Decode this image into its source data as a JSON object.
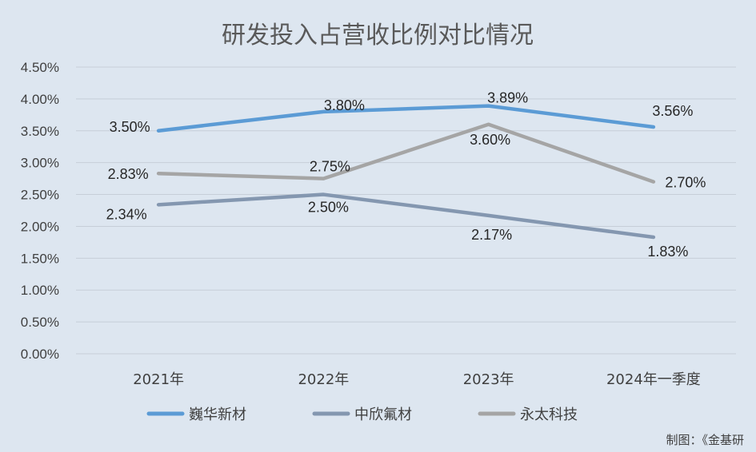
{
  "chart_data": {
    "type": "line",
    "title": "研发投入占营收比例对比情况",
    "categories": [
      "2021年",
      "2022年",
      "2023年",
      "2024年一季度"
    ],
    "y_ticks": [
      "0.00%",
      "0.50%",
      "1.00%",
      "1.50%",
      "2.00%",
      "2.50%",
      "3.00%",
      "3.50%",
      "4.00%",
      "4.50%"
    ],
    "ylim": [
      0,
      4.5
    ],
    "grid": true,
    "legend_position": "bottom",
    "series": [
      {
        "name": "巍华新材",
        "color": "#5b9bd5",
        "values": [
          3.5,
          3.8,
          3.89,
          3.56
        ],
        "labels": [
          "3.50%",
          "3.80%",
          "3.89%",
          "3.56%"
        ]
      },
      {
        "name": "中欣氟材",
        "color": "#8497b0",
        "values": [
          2.34,
          2.5,
          2.17,
          1.83
        ],
        "labels": [
          "2.34%",
          "2.50%",
          "2.17%",
          "1.83%"
        ]
      },
      {
        "name": "永太科技",
        "color": "#a5a5a5",
        "values": [
          2.83,
          2.75,
          3.6,
          2.7
        ],
        "labels": [
          "2.83%",
          "2.75%",
          "3.60%",
          "2.70%"
        ]
      }
    ]
  },
  "credit": "制图：《金基研"
}
